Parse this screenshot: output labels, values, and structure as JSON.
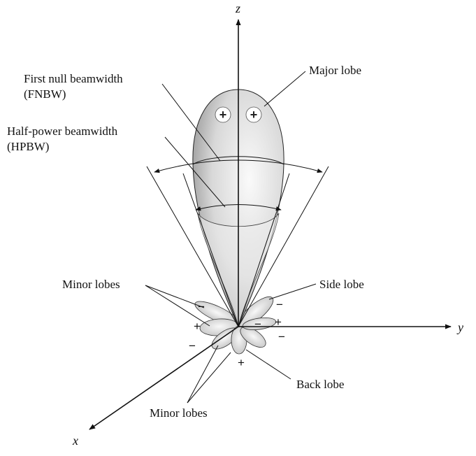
{
  "axes": {
    "z": "z",
    "y": "y",
    "x": "x"
  },
  "labels": {
    "fnbw_line1": "First null beamwidth",
    "fnbw_line2": "(FNBW)",
    "hpbw_line1": "Half-power beamwidth",
    "hpbw_line2": "(HPBW)",
    "major_lobe": "Major lobe",
    "minor_lobes_top": "Minor lobes",
    "side_lobe": "Side lobe",
    "back_lobe": "Back lobe",
    "minor_lobes_bottom": "Minor lobes"
  },
  "signs": {
    "plus": "+",
    "minus": "−"
  },
  "colors": {
    "lobe_fill_light": "#f4f4f4",
    "lobe_fill_dark": "#8a8a8a",
    "ink": "#111111"
  }
}
